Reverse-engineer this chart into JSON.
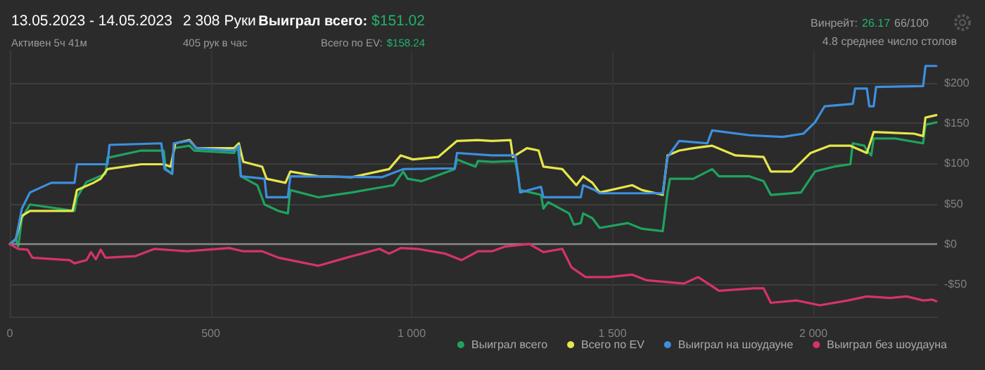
{
  "chart_data": {
    "type": "line",
    "title": "13.05.2023 - 14.05.2023",
    "subtitle": "Активен 5ч 41м",
    "annotations": [
      "2 308 Руки",
      "405 рук в час",
      "Выиграл всего:",
      "$151.02",
      "Всего по EV:",
      "$158.24",
      "Винрейт:",
      "26.17",
      "66/100",
      "4.8 среднее число столов"
    ],
    "xlim": [
      0,
      2308
    ],
    "xticks": [
      0,
      500,
      {
        "value": 1000,
        "label": "1 000"
      },
      {
        "value": 1500,
        "label": "1 500"
      },
      {
        "value": 2000,
        "label": "2 000"
      }
    ],
    "ylim": [
      -90,
      240
    ],
    "yticks": [
      {
        "value": -50,
        "label": "-$50"
      },
      {
        "value": 0,
        "label": "$0"
      },
      {
        "value": 50,
        "label": "$50"
      },
      {
        "value": 100,
        "label": "$100"
      },
      {
        "value": 150,
        "label": "$150"
      },
      {
        "value": 200,
        "label": "$200"
      }
    ],
    "grid": true,
    "legend": "bottom right",
    "marker": "none",
    "line_style": "solid",
    "ref_lines": [
      {
        "axis": "y",
        "value": 0,
        "color": "#8a8a8a"
      }
    ],
    "series": [
      {
        "name": "Выиграл всего",
        "color": "#1fa35f",
        "x": [
          0,
          15,
          21,
          30,
          50,
          161,
          167,
          191,
          238,
          243,
          327,
          383,
          388,
          404,
          408,
          447,
          459,
          558,
          567,
          575,
          616,
          634,
          669,
          692,
          698,
          768,
          851,
          955,
          979,
          990,
          1025,
          1107,
          1113,
          1159,
          1165,
          1200,
          1258,
          1264,
          1270,
          1322,
          1328,
          1340,
          1392,
          1404,
          1421,
          1427,
          1450,
          1468,
          1538,
          1573,
          1625,
          1637,
          1643,
          1701,
          1748,
          1765,
          1841,
          1876,
          1894,
          1969,
          2004,
          2051,
          2092,
          2098,
          2127,
          2133,
          2144,
          2150,
          2203,
          2273,
          2279,
          2306
        ],
        "values": [
          0,
          6,
          -3,
          32,
          49,
          41,
          58,
          77,
          87,
          107,
          116,
          116,
          93,
          87,
          119,
          122,
          116,
          113,
          122,
          84,
          73,
          49,
          41,
          38,
          67,
          58,
          64,
          73,
          90,
          81,
          78,
          93,
          105,
          96,
          103,
          102,
          103,
          87,
          67,
          61,
          44,
          52,
          38,
          24,
          26,
          38,
          32,
          20,
          26,
          19,
          16,
          64,
          81,
          81,
          93,
          84,
          84,
          78,
          61,
          64,
          90,
          96,
          99,
          125,
          122,
          116,
          110,
          131,
          131,
          125,
          148,
          151
        ]
      },
      {
        "name": "Всего по EV",
        "color": "#e6e64c",
        "x": [
          0,
          15,
          30,
          50,
          156,
          167,
          208,
          226,
          243,
          327,
          383,
          400,
          412,
          447,
          464,
          558,
          570,
          581,
          628,
          639,
          686,
          698,
          768,
          851,
          944,
          973,
          1003,
          1066,
          1113,
          1165,
          1200,
          1246,
          1252,
          1287,
          1316,
          1328,
          1375,
          1410,
          1427,
          1450,
          1468,
          1549,
          1573,
          1625,
          1637,
          1666,
          1701,
          1748,
          1806,
          1876,
          1894,
          1946,
          1993,
          2040,
          2092,
          2133,
          2150,
          2250,
          2273,
          2279,
          2306
        ],
        "values": [
          0,
          6,
          35,
          41,
          41,
          67,
          76,
          81,
          93,
          99,
          99,
          96,
          125,
          129,
          119,
          119,
          125,
          102,
          96,
          81,
          76,
          90,
          84,
          83,
          93,
          110,
          105,
          108,
          128,
          129,
          128,
          129,
          108,
          119,
          116,
          96,
          93,
          73,
          84,
          76,
          64,
          73,
          67,
          61,
          110,
          116,
          119,
          122,
          110,
          108,
          90,
          90,
          113,
          122,
          122,
          113,
          139,
          137,
          134,
          157,
          160
        ]
      },
      {
        "name": "Выиграл на шоудауне",
        "color": "#3d8fe0",
        "x": [
          0,
          15,
          30,
          50,
          103,
          161,
          167,
          243,
          248,
          377,
          385,
          404,
          408,
          447,
          464,
          558,
          570,
          575,
          634,
          639,
          692,
          698,
          927,
          979,
          1107,
          1113,
          1200,
          1258,
          1264,
          1270,
          1322,
          1328,
          1421,
          1427,
          1456,
          1468,
          1625,
          1637,
          1666,
          1736,
          1748,
          1841,
          1923,
          1975,
          2004,
          2028,
          2098,
          2104,
          2133,
          2139,
          2150,
          2156,
          2273,
          2279,
          2306
        ],
        "values": [
          0,
          6,
          44,
          64,
          76,
          76,
          99,
          99,
          123,
          125,
          93,
          87,
          125,
          128,
          119,
          116,
          122,
          84,
          81,
          58,
          58,
          84,
          83,
          93,
          94,
          113,
          110,
          110,
          90,
          64,
          71,
          58,
          58,
          73,
          67,
          63,
          63,
          108,
          128,
          125,
          141,
          135,
          133,
          137,
          151,
          171,
          174,
          193,
          193,
          171,
          171,
          195,
          196,
          221,
          221
        ]
      },
      {
        "name": "Выиграл без шоудауна",
        "color": "#d6336a",
        "x": [
          0,
          21,
          44,
          56,
          149,
          161,
          191,
          202,
          214,
          226,
          238,
          313,
          360,
          441,
          546,
          581,
          628,
          669,
          768,
          838,
          920,
          944,
          973,
          1014,
          1084,
          1124,
          1165,
          1200,
          1234,
          1293,
          1328,
          1375,
          1398,
          1433,
          1491,
          1549,
          1585,
          1678,
          1713,
          1765,
          1853,
          1876,
          1894,
          1958,
          2016,
          2086,
          2133,
          2191,
          2232,
          2273,
          2296,
          2306
        ],
        "values": [
          0,
          -6,
          -7,
          -17,
          -20,
          -24,
          -20,
          -10,
          -19,
          -7,
          -17,
          -15,
          -6,
          -9,
          -5,
          -9,
          -9,
          -17,
          -27,
          -17,
          -6,
          -12,
          -5,
          -6,
          -12,
          -20,
          -9,
          -9,
          -3,
          0,
          -10,
          -6,
          -29,
          -41,
          -41,
          -38,
          -45,
          -49,
          -41,
          -58,
          -55,
          -55,
          -73,
          -70,
          -76,
          -70,
          -65,
          -67,
          -65,
          -70,
          -69,
          -71
        ]
      }
    ]
  }
}
